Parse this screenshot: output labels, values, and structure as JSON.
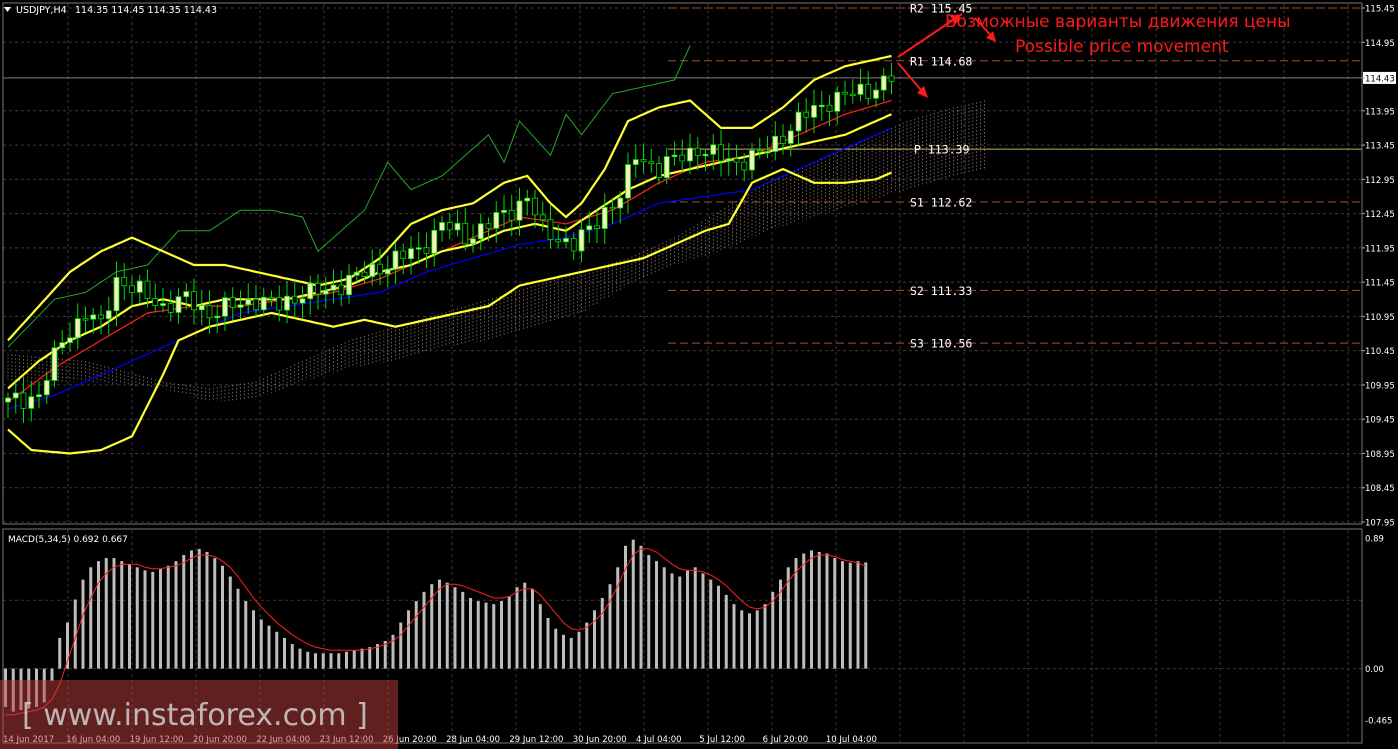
{
  "header": {
    "symbol_label": "USDJPY,H4",
    "ohlc_text": "114.35 114.45 114.35 114.43"
  },
  "annotations": {
    "ru_text": "Возможные варианты движения цены",
    "en_text": "Possible price movement"
  },
  "watermark": "[ www.instaforex.com ]",
  "colors": {
    "background": "#000000",
    "grid": "#3a3a3a",
    "bull_candle": "#f2f2b8",
    "bear_candle": "#000000",
    "wick": "#00dd00",
    "bollinger": "#ffff33",
    "ema": "#ff2020",
    "tenkan": "#0000ff",
    "chikou": "#22aa22",
    "cloud": "#d8b8a0",
    "pivot_line": "#c8b060",
    "sr_line": "#a05030",
    "annotation": "#ff1a1a",
    "macd_hist": "#bdbdbd",
    "macd_signal": "#ff2020"
  },
  "chart_data": [
    {
      "type": "candlestick",
      "title": "USDJPY,H4",
      "ylim": [
        107.95,
        115.45
      ],
      "y_ticks": [
        "115.45",
        "114.95",
        "114.43",
        "113.95",
        "113.45",
        "112.95",
        "112.45",
        "111.95",
        "111.45",
        "110.95",
        "110.45",
        "109.95",
        "109.45",
        "108.95",
        "108.45",
        "107.95"
      ],
      "current_price": 114.43,
      "x_tick_labels": [
        "14 Jun 2017",
        "16 Jun 04:00",
        "19 Jun 12:00",
        "20 Jun 20:00",
        "22 Jun 04:00",
        "23 Jun 12:00",
        "26 Jun 20:00",
        "28 Jun 04:00",
        "29 Jun 12:00",
        "30 Jun 20:00",
        "4 Jul 04:00",
        "5 Jul 12:00",
        "6 Jul 20:00",
        "10 Jul 04:00"
      ],
      "pivot_levels": [
        {
          "name": "R2",
          "value": 115.45,
          "text": "R2  115.45"
        },
        {
          "name": "R1",
          "value": 114.68,
          "text": "R1  114.68"
        },
        {
          "name": "P",
          "value": 113.39,
          "text": "P  113.39"
        },
        {
          "name": "S1",
          "value": 112.62,
          "text": "S1  112.62"
        },
        {
          "name": "S2",
          "value": 111.33,
          "text": "S2  111.33"
        },
        {
          "name": "S3",
          "value": 110.56,
          "text": "S3  110.56"
        }
      ],
      "close_path": [
        [
          0,
          109.7
        ],
        [
          4,
          109.8
        ],
        [
          7,
          110.6
        ],
        [
          10,
          111.0
        ],
        [
          12,
          110.8
        ],
        [
          14,
          111.5
        ],
        [
          17,
          111.3
        ],
        [
          20,
          111.1
        ],
        [
          23,
          111.2
        ],
        [
          26,
          111.0
        ],
        [
          29,
          111.1
        ],
        [
          32,
          111.2
        ],
        [
          35,
          111.1
        ],
        [
          38,
          111.3
        ],
        [
          41,
          111.3
        ],
        [
          44,
          111.5
        ],
        [
          47,
          111.6
        ],
        [
          50,
          111.8
        ],
        [
          53,
          111.9
        ],
        [
          56,
          112.3
        ],
        [
          59,
          112.1
        ],
        [
          62,
          112.3
        ],
        [
          65,
          112.5
        ],
        [
          67,
          112.7
        ],
        [
          69,
          112.2
        ],
        [
          71,
          112.1
        ],
        [
          73,
          112.0
        ],
        [
          75,
          112.2
        ],
        [
          77,
          112.5
        ],
        [
          79,
          112.7
        ],
        [
          81,
          113.3
        ],
        [
          84,
          113.1
        ],
        [
          87,
          113.3
        ],
        [
          89,
          113.4
        ],
        [
          91,
          113.3
        ],
        [
          94,
          113.2
        ],
        [
          97,
          113.3
        ],
        [
          100,
          113.6
        ],
        [
          103,
          113.9
        ],
        [
          106,
          114.1
        ],
        [
          109,
          114.2
        ],
        [
          112,
          114.3
        ],
        [
          114,
          114.43
        ]
      ],
      "bollinger_upper": [
        [
          0,
          110.6
        ],
        [
          4,
          111.1
        ],
        [
          8,
          111.6
        ],
        [
          12,
          111.9
        ],
        [
          16,
          112.1
        ],
        [
          20,
          111.9
        ],
        [
          24,
          111.7
        ],
        [
          28,
          111.7
        ],
        [
          32,
          111.6
        ],
        [
          36,
          111.5
        ],
        [
          40,
          111.4
        ],
        [
          44,
          111.5
        ],
        [
          48,
          111.8
        ],
        [
          52,
          112.3
        ],
        [
          56,
          112.5
        ],
        [
          60,
          112.6
        ],
        [
          64,
          112.9
        ],
        [
          67,
          113.0
        ],
        [
          70,
          112.6
        ],
        [
          72,
          112.4
        ],
        [
          74,
          112.6
        ],
        [
          77,
          113.1
        ],
        [
          80,
          113.8
        ],
        [
          84,
          114.0
        ],
        [
          88,
          114.1
        ],
        [
          92,
          113.7
        ],
        [
          96,
          113.7
        ],
        [
          100,
          114.0
        ],
        [
          104,
          114.4
        ],
        [
          108,
          114.6
        ],
        [
          112,
          114.7
        ],
        [
          114,
          114.75
        ]
      ],
      "bollinger_middle": [
        [
          0,
          109.9
        ],
        [
          4,
          110.3
        ],
        [
          8,
          110.6
        ],
        [
          12,
          110.8
        ],
        [
          16,
          111.1
        ],
        [
          20,
          111.2
        ],
        [
          24,
          111.1
        ],
        [
          28,
          111.2
        ],
        [
          32,
          111.2
        ],
        [
          36,
          111.2
        ],
        [
          40,
          111.3
        ],
        [
          44,
          111.4
        ],
        [
          48,
          111.6
        ],
        [
          52,
          111.7
        ],
        [
          56,
          111.9
        ],
        [
          60,
          112.0
        ],
        [
          64,
          112.2
        ],
        [
          68,
          112.3
        ],
        [
          72,
          112.2
        ],
        [
          76,
          112.5
        ],
        [
          80,
          112.8
        ],
        [
          84,
          113.0
        ],
        [
          88,
          113.1
        ],
        [
          92,
          113.2
        ],
        [
          96,
          113.3
        ],
        [
          100,
          113.4
        ],
        [
          104,
          113.5
        ],
        [
          108,
          113.6
        ],
        [
          112,
          113.8
        ],
        [
          114,
          113.9
        ]
      ],
      "bollinger_lower": [
        [
          0,
          109.3
        ],
        [
          3,
          109.0
        ],
        [
          8,
          108.95
        ],
        [
          12,
          109.0
        ],
        [
          16,
          109.2
        ],
        [
          20,
          110.1
        ],
        [
          22,
          110.6
        ],
        [
          26,
          110.8
        ],
        [
          30,
          110.9
        ],
        [
          34,
          111.0
        ],
        [
          38,
          110.9
        ],
        [
          42,
          110.8
        ],
        [
          46,
          110.9
        ],
        [
          50,
          110.8
        ],
        [
          54,
          110.9
        ],
        [
          58,
          111.0
        ],
        [
          62,
          111.1
        ],
        [
          66,
          111.4
        ],
        [
          70,
          111.5
        ],
        [
          74,
          111.6
        ],
        [
          78,
          111.7
        ],
        [
          82,
          111.8
        ],
        [
          86,
          112.0
        ],
        [
          90,
          112.2
        ],
        [
          93,
          112.3
        ],
        [
          96,
          112.9
        ],
        [
          100,
          113.1
        ],
        [
          104,
          112.9
        ],
        [
          108,
          112.9
        ],
        [
          112,
          112.95
        ],
        [
          114,
          113.05
        ]
      ],
      "ema": [
        [
          0,
          109.7
        ],
        [
          6,
          110.2
        ],
        [
          12,
          110.6
        ],
        [
          18,
          111.0
        ],
        [
          24,
          111.1
        ],
        [
          30,
          111.1
        ],
        [
          36,
          111.2
        ],
        [
          42,
          111.3
        ],
        [
          48,
          111.5
        ],
        [
          54,
          111.8
        ],
        [
          60,
          112.1
        ],
        [
          66,
          112.4
        ],
        [
          72,
          112.3
        ],
        [
          78,
          112.5
        ],
        [
          84,
          112.9
        ],
        [
          90,
          113.2
        ],
        [
          96,
          113.3
        ],
        [
          102,
          113.6
        ],
        [
          108,
          113.9
        ],
        [
          114,
          114.1
        ]
      ],
      "tenkan": [
        [
          0,
          109.6
        ],
        [
          6,
          109.8
        ],
        [
          12,
          110.1
        ],
        [
          18,
          110.4
        ],
        [
          24,
          110.7
        ],
        [
          30,
          111.0
        ],
        [
          36,
          111.1
        ],
        [
          42,
          111.2
        ],
        [
          48,
          111.3
        ],
        [
          54,
          111.6
        ],
        [
          60,
          111.8
        ],
        [
          66,
          112.0
        ],
        [
          72,
          112.1
        ],
        [
          78,
          112.3
        ],
        [
          84,
          112.6
        ],
        [
          90,
          112.7
        ],
        [
          96,
          112.8
        ],
        [
          102,
          113.1
        ],
        [
          108,
          113.4
        ],
        [
          114,
          113.7
        ]
      ],
      "chikou": [
        [
          0,
          110.5
        ],
        [
          6,
          111.2
        ],
        [
          10,
          111.3
        ],
        [
          14,
          111.6
        ],
        [
          18,
          111.7
        ],
        [
          22,
          112.2
        ],
        [
          26,
          112.2
        ],
        [
          30,
          112.5
        ],
        [
          34,
          112.5
        ],
        [
          38,
          112.4
        ],
        [
          40,
          111.9
        ],
        [
          42,
          112.1
        ],
        [
          46,
          112.5
        ],
        [
          49,
          113.2
        ],
        [
          52,
          112.8
        ],
        [
          56,
          113.0
        ],
        [
          60,
          113.4
        ],
        [
          62,
          113.6
        ],
        [
          64,
          113.2
        ],
        [
          66,
          113.8
        ],
        [
          70,
          113.3
        ],
        [
          72,
          113.9
        ],
        [
          74,
          113.6
        ],
        [
          78,
          114.2
        ],
        [
          82,
          114.3
        ],
        [
          86,
          114.4
        ],
        [
          88,
          114.9
        ]
      ],
      "cloud_top": [
        [
          0,
          110.4
        ],
        [
          10,
          110.3
        ],
        [
          20,
          110.0
        ],
        [
          26,
          109.9
        ],
        [
          32,
          110.0
        ],
        [
          38,
          110.3
        ],
        [
          44,
          110.6
        ],
        [
          50,
          110.8
        ],
        [
          56,
          111.0
        ],
        [
          62,
          111.2
        ],
        [
          68,
          111.4
        ],
        [
          74,
          111.6
        ],
        [
          80,
          111.8
        ],
        [
          86,
          112.1
        ],
        [
          92,
          112.5
        ],
        [
          98,
          112.9
        ],
        [
          104,
          113.2
        ],
        [
          110,
          113.5
        ],
        [
          116,
          113.8
        ],
        [
          122,
          114.0
        ],
        [
          126,
          114.1
        ]
      ],
      "cloud_bottom": [
        [
          0,
          110.0
        ],
        [
          10,
          110.0
        ],
        [
          20,
          109.9
        ],
        [
          26,
          109.7
        ],
        [
          32,
          109.75
        ],
        [
          38,
          110.0
        ],
        [
          44,
          110.2
        ],
        [
          50,
          110.3
        ],
        [
          56,
          110.5
        ],
        [
          62,
          110.6
        ],
        [
          68,
          110.8
        ],
        [
          74,
          111.0
        ],
        [
          80,
          111.4
        ],
        [
          86,
          111.7
        ],
        [
          92,
          111.9
        ],
        [
          98,
          112.2
        ],
        [
          104,
          112.4
        ],
        [
          110,
          112.6
        ],
        [
          116,
          112.8
        ],
        [
          122,
          113.0
        ],
        [
          126,
          113.1
        ]
      ]
    },
    {
      "type": "bar",
      "title": "MACD(5,34,5) 0.692 0.667",
      "ylim": [
        -0.465,
        0.89
      ],
      "y_ticks": [
        "0.89",
        "0.00",
        "-0.465"
      ],
      "values": [
        -0.25,
        -0.28,
        -0.27,
        -0.26,
        -0.25,
        -0.22,
        -0.08,
        0.2,
        0.3,
        0.45,
        0.58,
        0.66,
        0.7,
        0.72,
        0.72,
        0.7,
        0.68,
        0.66,
        0.64,
        0.63,
        0.65,
        0.67,
        0.7,
        0.74,
        0.77,
        0.78,
        0.76,
        0.72,
        0.67,
        0.6,
        0.52,
        0.44,
        0.38,
        0.32,
        0.28,
        0.24,
        0.2,
        0.16,
        0.13,
        0.11,
        0.1,
        0.1,
        0.1,
        0.1,
        0.11,
        0.12,
        0.13,
        0.14,
        0.16,
        0.18,
        0.22,
        0.3,
        0.38,
        0.44,
        0.5,
        0.55,
        0.58,
        0.56,
        0.53,
        0.5,
        0.46,
        0.44,
        0.43,
        0.42,
        0.44,
        0.47,
        0.53,
        0.56,
        0.52,
        0.42,
        0.33,
        0.26,
        0.22,
        0.2,
        0.24,
        0.3,
        0.38,
        0.46,
        0.55,
        0.66,
        0.8,
        0.84,
        0.8,
        0.74,
        0.7,
        0.66,
        0.62,
        0.6,
        0.64,
        0.66,
        0.62,
        0.58,
        0.54,
        0.48,
        0.42,
        0.38,
        0.36,
        0.38,
        0.42,
        0.5,
        0.58,
        0.66,
        0.72,
        0.75,
        0.77,
        0.76,
        0.75,
        0.72,
        0.7,
        0.69,
        0.7,
        0.692
      ],
      "signal": [
        -0.3,
        -0.3,
        -0.29,
        -0.28,
        -0.27,
        -0.25,
        -0.2,
        -0.1,
        0.05,
        0.2,
        0.35,
        0.46,
        0.56,
        0.62,
        0.66,
        0.68,
        0.68,
        0.68,
        0.66,
        0.65,
        0.65,
        0.66,
        0.67,
        0.69,
        0.72,
        0.74,
        0.74,
        0.73,
        0.7,
        0.66,
        0.6,
        0.53,
        0.46,
        0.4,
        0.35,
        0.3,
        0.26,
        0.22,
        0.19,
        0.16,
        0.14,
        0.13,
        0.12,
        0.12,
        0.12,
        0.12,
        0.12,
        0.13,
        0.14,
        0.16,
        0.18,
        0.22,
        0.28,
        0.34,
        0.4,
        0.46,
        0.52,
        0.55,
        0.55,
        0.54,
        0.52,
        0.5,
        0.48,
        0.46,
        0.46,
        0.47,
        0.5,
        0.52,
        0.52,
        0.48,
        0.42,
        0.36,
        0.3,
        0.26,
        0.25,
        0.27,
        0.31,
        0.36,
        0.44,
        0.54,
        0.65,
        0.74,
        0.78,
        0.78,
        0.76,
        0.72,
        0.68,
        0.65,
        0.64,
        0.64,
        0.63,
        0.61,
        0.58,
        0.54,
        0.49,
        0.44,
        0.4,
        0.39,
        0.4,
        0.44,
        0.5,
        0.57,
        0.63,
        0.68,
        0.72,
        0.74,
        0.74,
        0.73,
        0.71,
        0.7,
        0.69,
        0.667
      ]
    }
  ]
}
